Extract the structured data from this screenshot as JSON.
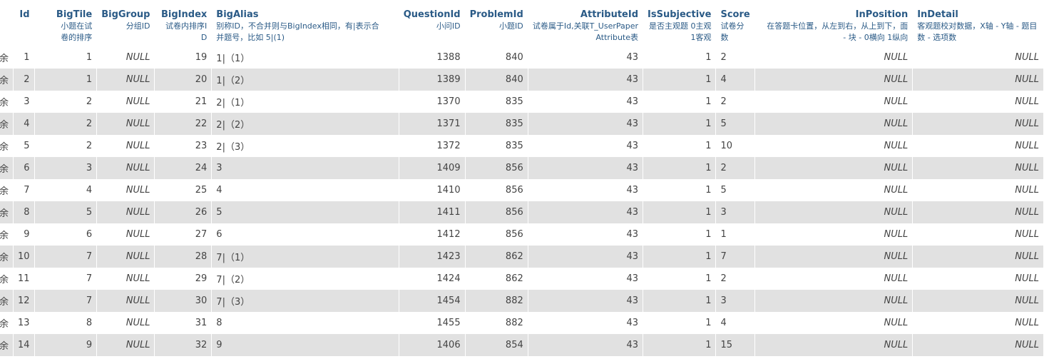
{
  "columns": [
    {
      "name": "",
      "desc": ""
    },
    {
      "name": "Id",
      "desc": ""
    },
    {
      "name": "BigTile",
      "desc": "小题在试卷的排序"
    },
    {
      "name": "BigGroup",
      "desc": "分组ID"
    },
    {
      "name": "BigIndex",
      "desc": "试卷内排序ID"
    },
    {
      "name": "BigAlias",
      "desc": "别称ID，不合并则与BigIndex相同，有|表示合并题号，比如 5|(1)"
    },
    {
      "name": "QuestionId",
      "desc": "小问ID"
    },
    {
      "name": "ProblemId",
      "desc": "小题ID"
    },
    {
      "name": "AttributeId",
      "desc": "试卷属于Id,关联T_UserPaperAttribute表"
    },
    {
      "name": "IsSubjective",
      "desc": "是否主观题 0主观 1客观"
    },
    {
      "name": "Score",
      "desc": "试卷分数"
    },
    {
      "name": "InPosition",
      "desc": "在答题卡位置，从左到右，从上到下，面 - 块 - 0横向 1纵向"
    },
    {
      "name": "InDetail",
      "desc": "客观题校对数据，X轴 - Y轴 - 题目数 - 选项数"
    }
  ],
  "rows": [
    {
      "sel": "余",
      "id": "1",
      "bigtile": "1",
      "biggroup": "NULL",
      "bigindex": "19",
      "bigalias": "1|（1）",
      "questionid": "1388",
      "problemid": "840",
      "attributeid": "43",
      "issubjective": "1",
      "score": "2",
      "inposition": "NULL",
      "indetail": "NULL"
    },
    {
      "sel": "余",
      "id": "2",
      "bigtile": "1",
      "biggroup": "NULL",
      "bigindex": "20",
      "bigalias": "1|（2）",
      "questionid": "1389",
      "problemid": "840",
      "attributeid": "43",
      "issubjective": "1",
      "score": "4",
      "inposition": "NULL",
      "indetail": "NULL"
    },
    {
      "sel": "余",
      "id": "3",
      "bigtile": "2",
      "biggroup": "NULL",
      "bigindex": "21",
      "bigalias": "2|（1）",
      "questionid": "1370",
      "problemid": "835",
      "attributeid": "43",
      "issubjective": "1",
      "score": "2",
      "inposition": "NULL",
      "indetail": "NULL"
    },
    {
      "sel": "余",
      "id": "4",
      "bigtile": "2",
      "biggroup": "NULL",
      "bigindex": "22",
      "bigalias": "2|（2）",
      "questionid": "1371",
      "problemid": "835",
      "attributeid": "43",
      "issubjective": "1",
      "score": "5",
      "inposition": "NULL",
      "indetail": "NULL"
    },
    {
      "sel": "余",
      "id": "5",
      "bigtile": "2",
      "biggroup": "NULL",
      "bigindex": "23",
      "bigalias": "2|（3）",
      "questionid": "1372",
      "problemid": "835",
      "attributeid": "43",
      "issubjective": "1",
      "score": "10",
      "inposition": "NULL",
      "indetail": "NULL"
    },
    {
      "sel": "余",
      "id": "6",
      "bigtile": "3",
      "biggroup": "NULL",
      "bigindex": "24",
      "bigalias": "3",
      "questionid": "1409",
      "problemid": "856",
      "attributeid": "43",
      "issubjective": "1",
      "score": "2",
      "inposition": "NULL",
      "indetail": "NULL"
    },
    {
      "sel": "余",
      "id": "7",
      "bigtile": "4",
      "biggroup": "NULL",
      "bigindex": "25",
      "bigalias": "4",
      "questionid": "1410",
      "problemid": "856",
      "attributeid": "43",
      "issubjective": "1",
      "score": "5",
      "inposition": "NULL",
      "indetail": "NULL"
    },
    {
      "sel": "余",
      "id": "8",
      "bigtile": "5",
      "biggroup": "NULL",
      "bigindex": "26",
      "bigalias": "5",
      "questionid": "1411",
      "problemid": "856",
      "attributeid": "43",
      "issubjective": "1",
      "score": "3",
      "inposition": "NULL",
      "indetail": "NULL"
    },
    {
      "sel": "余",
      "id": "9",
      "bigtile": "6",
      "biggroup": "NULL",
      "bigindex": "27",
      "bigalias": "6",
      "questionid": "1412",
      "problemid": "856",
      "attributeid": "43",
      "issubjective": "1",
      "score": "1",
      "inposition": "NULL",
      "indetail": "NULL"
    },
    {
      "sel": "余",
      "id": "10",
      "bigtile": "7",
      "biggroup": "NULL",
      "bigindex": "28",
      "bigalias": "7|（1）",
      "questionid": "1423",
      "problemid": "862",
      "attributeid": "43",
      "issubjective": "1",
      "score": "7",
      "inposition": "NULL",
      "indetail": "NULL"
    },
    {
      "sel": "余",
      "id": "11",
      "bigtile": "7",
      "biggroup": "NULL",
      "bigindex": "29",
      "bigalias": "7|（2）",
      "questionid": "1424",
      "problemid": "862",
      "attributeid": "43",
      "issubjective": "1",
      "score": "2",
      "inposition": "NULL",
      "indetail": "NULL"
    },
    {
      "sel": "余",
      "id": "12",
      "bigtile": "7",
      "biggroup": "NULL",
      "bigindex": "30",
      "bigalias": "7|（3）",
      "questionid": "1454",
      "problemid": "882",
      "attributeid": "43",
      "issubjective": "1",
      "score": "3",
      "inposition": "NULL",
      "indetail": "NULL"
    },
    {
      "sel": "余",
      "id": "13",
      "bigtile": "8",
      "biggroup": "NULL",
      "bigindex": "31",
      "bigalias": "8",
      "questionid": "1455",
      "problemid": "882",
      "attributeid": "43",
      "issubjective": "1",
      "score": "4",
      "inposition": "NULL",
      "indetail": "NULL"
    },
    {
      "sel": "余",
      "id": "14",
      "bigtile": "9",
      "biggroup": "NULL",
      "bigindex": "32",
      "bigalias": "9",
      "questionid": "1406",
      "problemid": "854",
      "attributeid": "43",
      "issubjective": "1",
      "score": "15",
      "inposition": "NULL",
      "indetail": "NULL"
    }
  ]
}
